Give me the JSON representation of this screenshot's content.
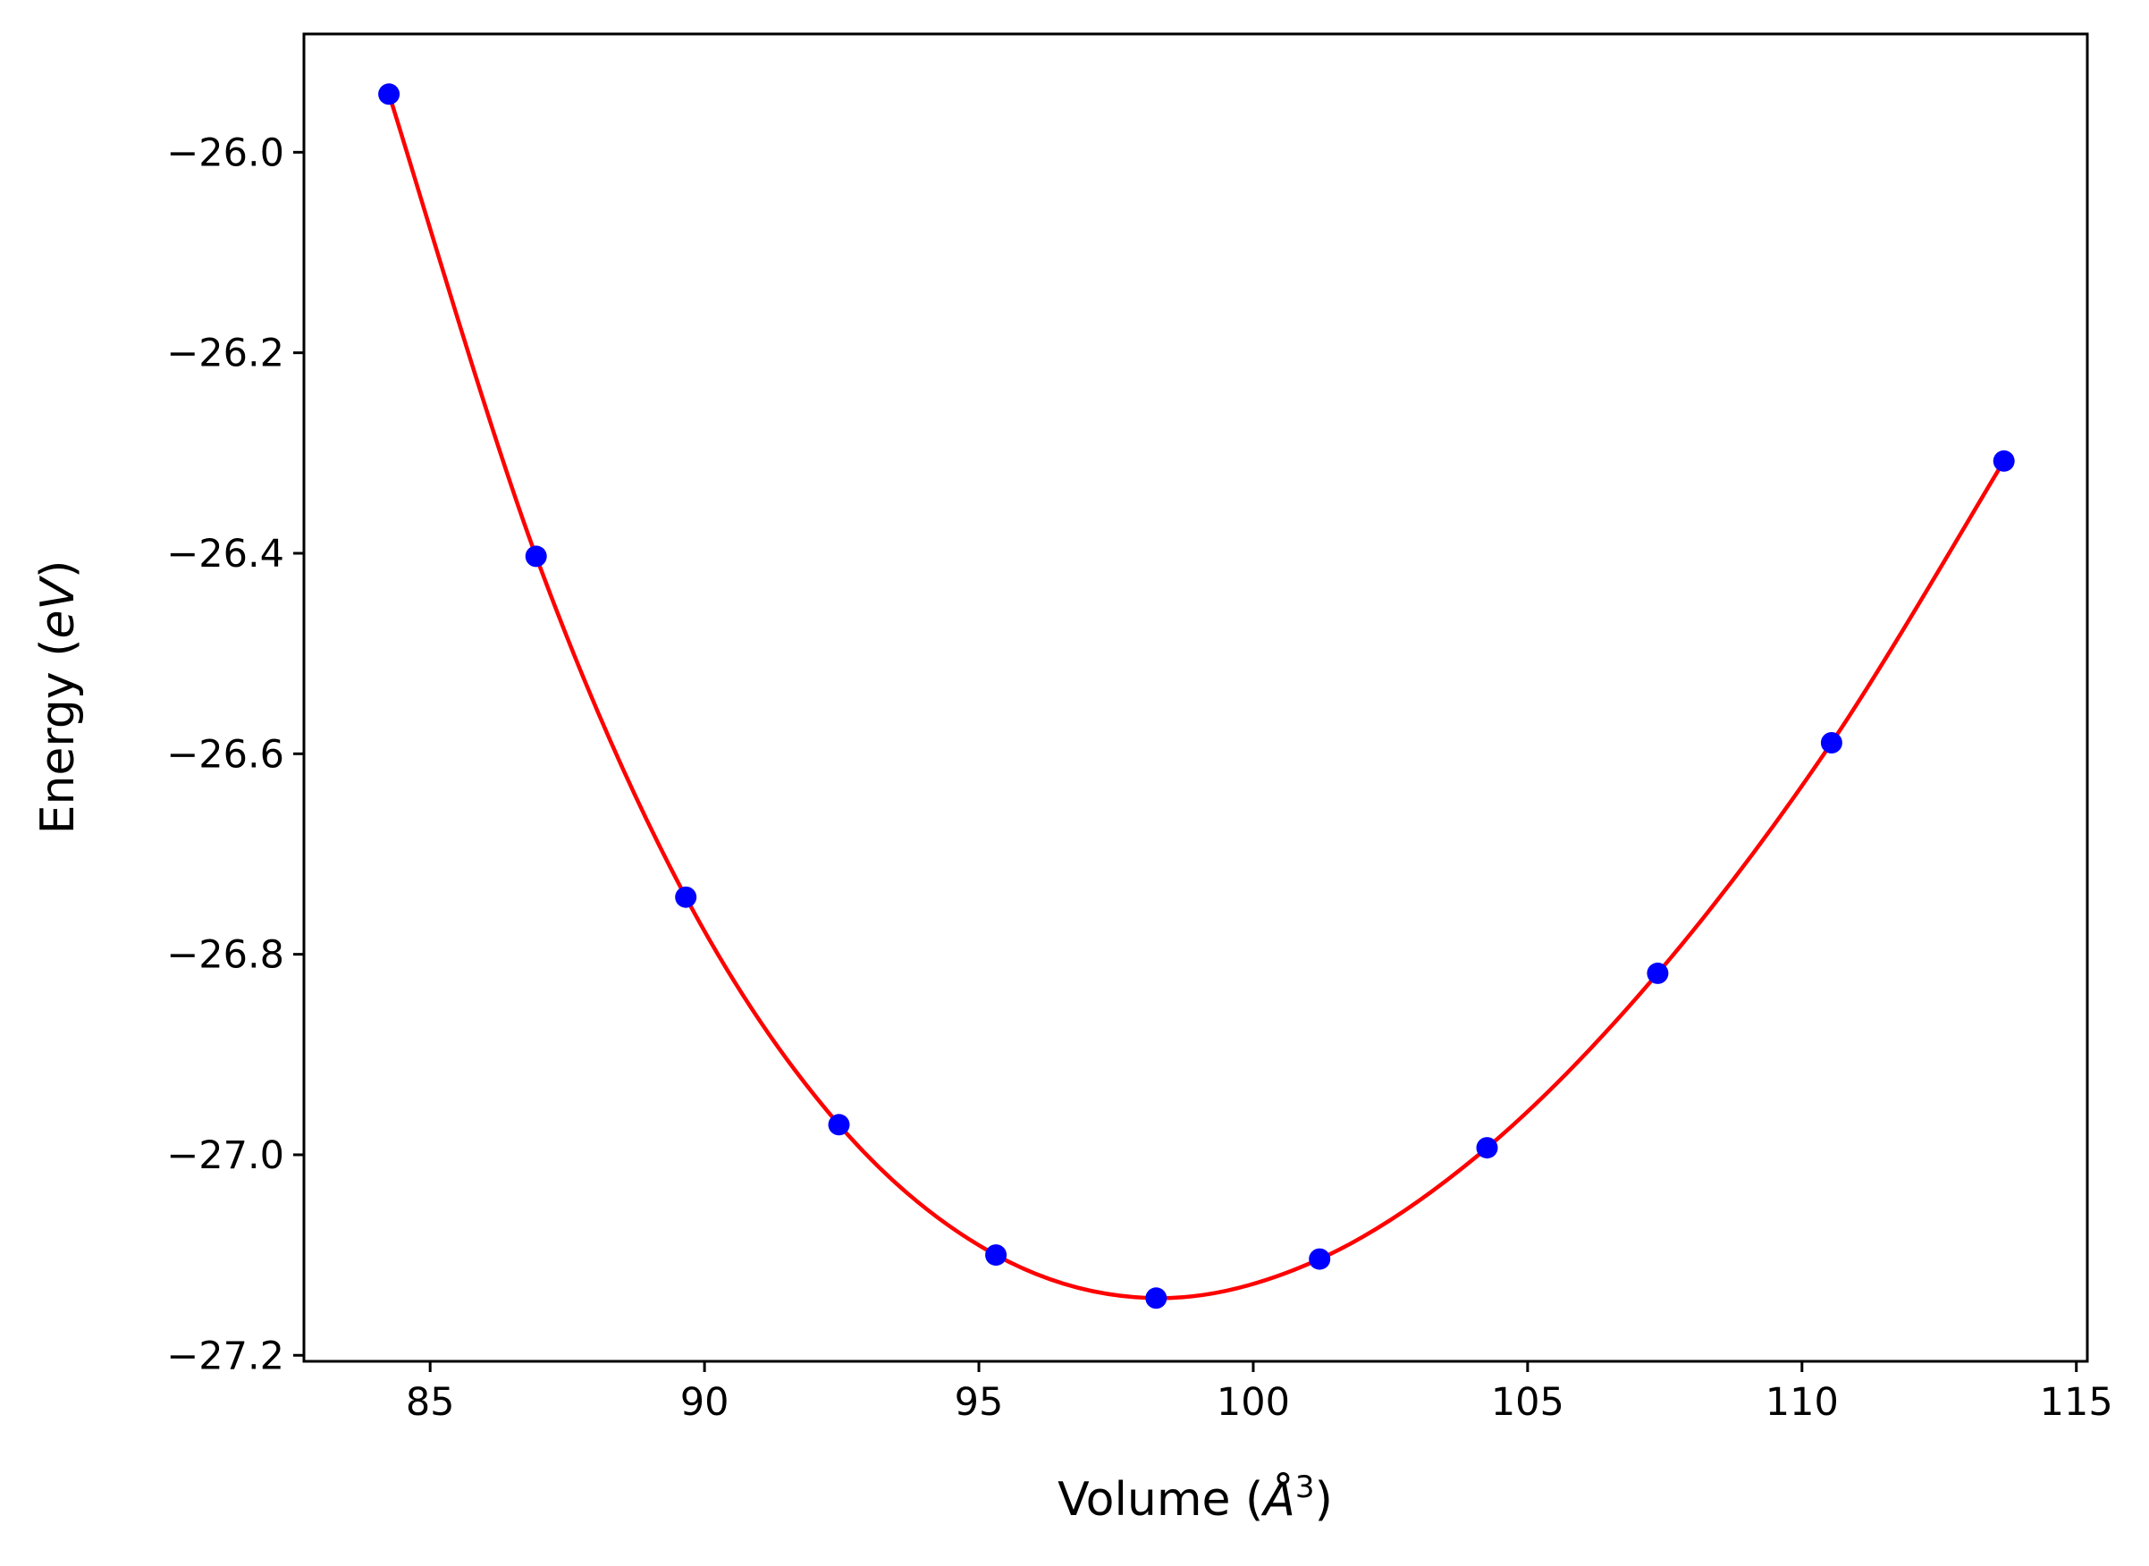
{
  "chart_data": {
    "type": "line",
    "xlabel_prefix": "Volume (",
    "xlabel_unit": "Å",
    "xlabel_exp": "3",
    "xlabel_suffix": ")",
    "ylabel_prefix": "Energy (",
    "ylabel_unit": "eV",
    "ylabel_suffix": ")",
    "xlim": [
      82.7,
      115.2
    ],
    "ylim": [
      -27.206,
      -25.882
    ],
    "x_ticks": [
      85,
      90,
      95,
      100,
      105,
      110,
      115
    ],
    "x_tick_labels": [
      "85",
      "90",
      "95",
      "100",
      "105",
      "110",
      "115"
    ],
    "y_ticks": [
      -27.2,
      -27.0,
      -26.8,
      -26.6,
      -26.4,
      -26.2,
      -26.0
    ],
    "y_tick_labels": [
      "−27.2",
      "−27.0",
      "−26.8",
      "−26.6",
      "−26.4",
      "−26.2",
      "−26.0"
    ],
    "series": [
      {
        "kind": "points",
        "color": "#0000ff",
        "x": [
          84.25,
          86.93,
          89.66,
          92.45,
          95.31,
          98.23,
          101.21,
          104.26,
          107.37,
          110.54,
          113.68
        ],
        "y": [
          -25.942,
          -26.403,
          -26.743,
          -26.97,
          -27.1,
          -27.143,
          -27.104,
          -26.993,
          -26.819,
          -26.589,
          -26.308
        ]
      },
      {
        "kind": "fit",
        "color": "#ff0000",
        "x": [
          84.25,
          86.93,
          89.66,
          92.45,
          95.31,
          98.23,
          101.21,
          104.26,
          107.37,
          110.54,
          113.68
        ],
        "y": [
          -25.942,
          -26.403,
          -26.743,
          -26.97,
          -27.1,
          -27.143,
          -27.104,
          -26.993,
          -26.819,
          -26.589,
          -26.308
        ]
      }
    ],
    "grid": false,
    "legend": "none"
  }
}
